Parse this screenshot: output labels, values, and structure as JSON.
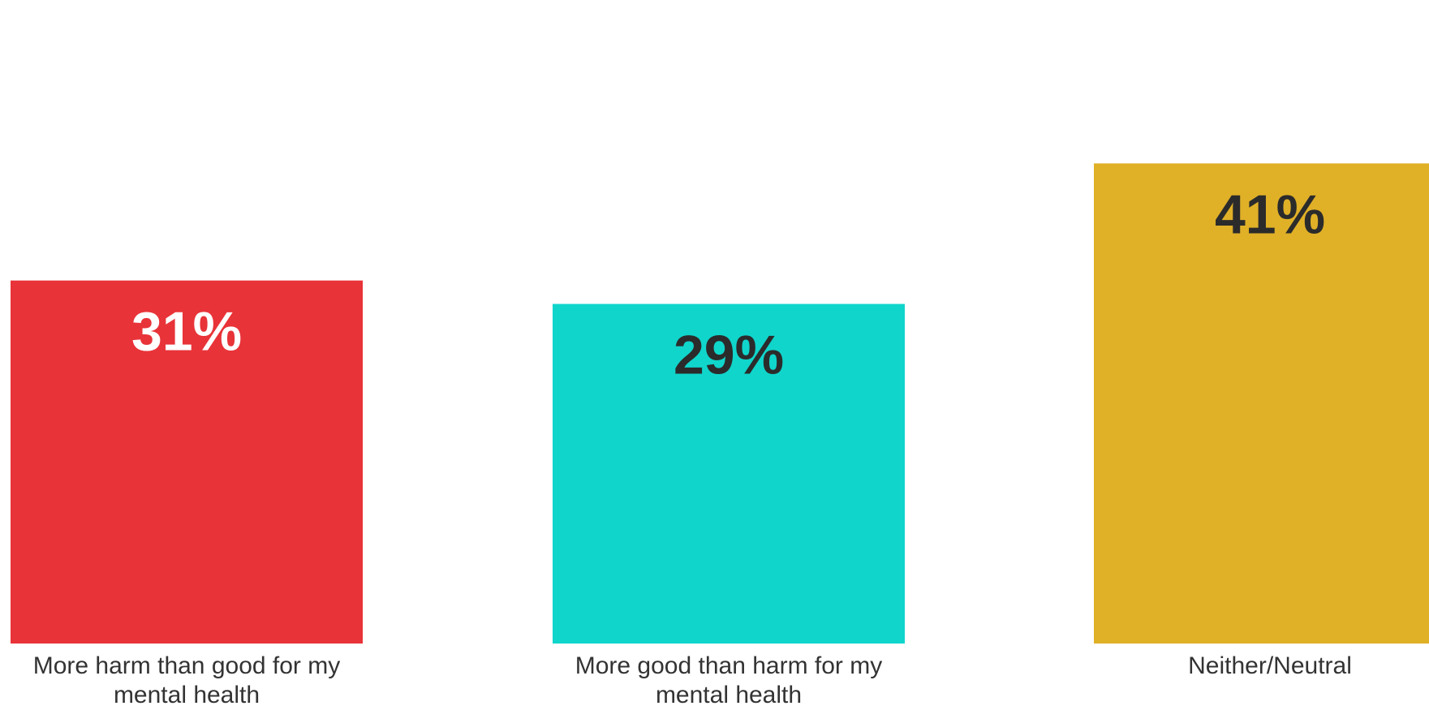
{
  "chart_data": {
    "type": "bar",
    "categories": [
      [
        "More harm than good for my",
        "mental health"
      ],
      [
        "More good than harm for my",
        "mental health"
      ],
      [
        "Neither/Neutral"
      ]
    ],
    "values": [
      31,
      29,
      41
    ],
    "value_labels": [
      "31%",
      "29%",
      "41%"
    ],
    "colors": [
      "#e83338",
      "#10d5cb",
      "#e0b027"
    ],
    "value_label_colors": [
      "#ffffff",
      "#2b2b2b",
      "#2b2b2b"
    ],
    "title": "",
    "xlabel": "",
    "ylabel": "",
    "unit": "%",
    "grid": false,
    "legend": false
  }
}
